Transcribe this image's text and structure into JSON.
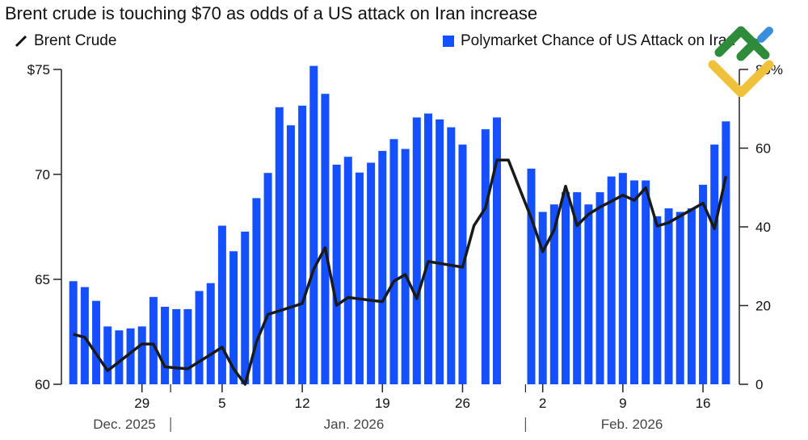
{
  "title": "Brent crude is touching $70 as odds of a US attack on Iran increase",
  "colors": {
    "bars": "#1450FF",
    "line": "#1a1a1a",
    "axis": "#222222"
  },
  "logo": {
    "type": "watermark-logo",
    "colors": [
      "#2E8B3A",
      "#F0C23B",
      "#3A8EDB"
    ]
  },
  "chart_data": {
    "type": "bar+line",
    "title": "Brent crude is touching $70 as odds of a US attack on Iran increase",
    "legend_placement": "top",
    "grid": false,
    "x": [
      "2025-12-23",
      "2025-12-24",
      "2025-12-25",
      "2025-12-26",
      "2025-12-27",
      "2025-12-28",
      "2025-12-29",
      "2025-12-30",
      "2025-12-31",
      "2026-01-01",
      "2026-01-02",
      "2026-01-03",
      "2026-01-04",
      "2026-01-05",
      "2026-01-06",
      "2026-01-07",
      "2026-01-08",
      "2026-01-09",
      "2026-01-10",
      "2026-01-11",
      "2026-01-12",
      "2026-01-13",
      "2026-01-14",
      "2026-01-15",
      "2026-01-16",
      "2026-01-17",
      "2026-01-18",
      "2026-01-19",
      "2026-01-20",
      "2026-01-21",
      "2026-01-22",
      "2026-01-23",
      "2026-01-24",
      "2026-01-25",
      "2026-01-26",
      "2026-01-27",
      "2026-01-28",
      "2026-01-29",
      "2026-01-30",
      "2026-01-31",
      "2026-02-01",
      "2026-02-02",
      "2026-02-03",
      "2026-02-04",
      "2026-02-05",
      "2026-02-06",
      "2026-02-07",
      "2026-02-08",
      "2026-02-09",
      "2026-02-10",
      "2026-02-11",
      "2026-02-12",
      "2026-02-13",
      "2026-02-14",
      "2026-02-15",
      "2026-02-16",
      "2026-02-17",
      "2026-02-18"
    ],
    "x_tick_labels": [
      {
        "date": "2025-12-29",
        "label": "29"
      },
      {
        "date": "2026-01-05",
        "label": "5"
      },
      {
        "date": "2026-01-12",
        "label": "12"
      },
      {
        "date": "2026-01-19",
        "label": "19"
      },
      {
        "date": "2026-01-26",
        "label": "26"
      },
      {
        "date": "2026-02-02",
        "label": "2"
      },
      {
        "date": "2026-02-09",
        "label": "9"
      },
      {
        "date": "2026-02-16",
        "label": "16"
      }
    ],
    "month_labels": [
      "Dec. 2025",
      "Jan. 2026",
      "Feb. 2026"
    ],
    "series": [
      {
        "name": "Polymarket Chance of US Attack on Iran",
        "type": "bar",
        "axis": "right",
        "values": [
          26.2,
          24.7,
          21.2,
          14.7,
          13.7,
          14.2,
          14.7,
          22.2,
          19.7,
          19.1,
          19.1,
          23.7,
          25.7,
          40.3,
          33.8,
          38.8,
          47.3,
          53.7,
          70.4,
          65.8,
          70.8,
          80.9,
          73.8,
          55.8,
          57.8,
          53.8,
          56.3,
          59.3,
          62.3,
          59.8,
          67.8,
          68.8,
          67.3,
          65.3,
          60.9,
          null,
          64.8,
          67.8,
          null,
          null,
          54.8,
          43.8,
          45.7,
          48.8,
          48.8,
          45.7,
          48.8,
          52.8,
          53.7,
          51.8,
          51.8,
          42.7,
          44.7,
          43.8,
          44.7,
          50.7,
          60.9,
          66.8
        ]
      },
      {
        "name": "Brent Crude",
        "type": "line",
        "axis": "left",
        "values": [
          62.38,
          62.24,
          61.45,
          60.65,
          61.07,
          61.5,
          61.92,
          61.92,
          60.83,
          60.78,
          60.74,
          61.08,
          61.42,
          61.77,
          60.74,
          60.0,
          62.02,
          63.33,
          63.5,
          63.67,
          63.85,
          65.49,
          66.51,
          63.76,
          64.14,
          64.07,
          64.0,
          63.94,
          64.91,
          65.23,
          64.08,
          65.85,
          65.76,
          65.67,
          65.58,
          67.56,
          68.4,
          70.68,
          70.68,
          69.3,
          67.92,
          66.32,
          67.35,
          69.44,
          67.56,
          68.1,
          68.44,
          68.72,
          69.01,
          68.76,
          69.36,
          67.54,
          67.7,
          68.01,
          68.32,
          68.63,
          67.41,
          69.91
        ]
      }
    ],
    "left_axis": {
      "ylim": [
        60,
        75
      ],
      "ticks": [
        60,
        65,
        70,
        75
      ],
      "tick_labels": [
        "60",
        "65",
        "70",
        "$75"
      ]
    },
    "right_axis": {
      "ylim": [
        0,
        80
      ],
      "ticks": [
        0,
        20,
        40,
        60,
        80
      ],
      "tick_labels": [
        "0",
        "20",
        "40",
        "60",
        "80%"
      ]
    }
  }
}
